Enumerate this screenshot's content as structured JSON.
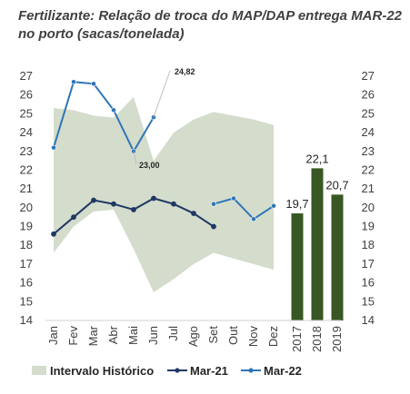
{
  "chart_data": {
    "type": "line",
    "title": "Fertilizante: Relação de troca do MAP/DAP entrega MAR-22 no porto (sacas/tonelada)",
    "ylim": [
      14,
      27
    ],
    "yticks": [
      "27",
      "26",
      "25",
      "24",
      "23",
      "22",
      "21",
      "20",
      "19",
      "18",
      "17",
      "16",
      "15",
      "14"
    ],
    "months": [
      "Jan",
      "Fev",
      "Mar",
      "Abr",
      "Mai",
      "Jun",
      "Jul",
      "Ago",
      "Set",
      "Out",
      "Nov",
      "Dez"
    ],
    "band": {
      "name": "Intervalo Histórico",
      "color": "#d4dccc",
      "upper": [
        25.3,
        25.2,
        24.9,
        24.8,
        25.9,
        22.5,
        24.0,
        24.7,
        25.1,
        24.9,
        24.7,
        24.4
      ],
      "lower": [
        17.6,
        19.0,
        19.8,
        19.9,
        17.8,
        15.5,
        16.2,
        17.0,
        17.6,
        17.3,
        17.0,
        16.7
      ]
    },
    "series": [
      {
        "name": "Mar-21",
        "color": "#1f3864",
        "values": [
          18.6,
          19.5,
          20.4,
          20.2,
          19.9,
          20.5,
          20.2,
          19.7,
          19.0,
          null,
          null,
          null
        ]
      },
      {
        "name": "Mar-22",
        "color": "#2e75b6",
        "values": [
          23.2,
          26.7,
          26.6,
          25.2,
          23.0,
          24.82,
          null,
          null,
          20.2,
          20.5,
          19.4,
          20.1
        ]
      }
    ],
    "annotations": [
      {
        "text": "24,82",
        "month": "Jun"
      },
      {
        "text": "23,00",
        "month": "Mai"
      }
    ],
    "bars": {
      "color": "#385723",
      "categories": [
        "2017",
        "2018",
        "2019"
      ],
      "values": [
        19.7,
        22.1,
        20.7
      ],
      "labels": [
        "19,7",
        "22,1",
        "20,7"
      ]
    },
    "legend": {
      "placement": "bottom",
      "items": [
        "Intervalo Histórico",
        "Mar-21",
        "Mar-22"
      ]
    }
  }
}
